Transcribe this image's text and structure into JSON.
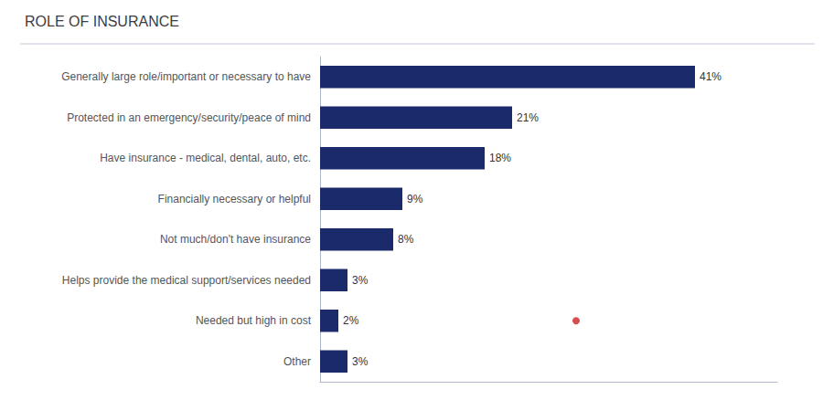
{
  "chart_data": {
    "type": "bar",
    "title": "ROLE OF INSURANCE",
    "orientation": "horizontal",
    "categories": [
      "Generally large role/important or necessary to have",
      "Protected in an emergency/security/peace of mind",
      "Have insurance - medical, dental, auto, etc.",
      "Financially necessary or helpful",
      "Not much/don't have insurance",
      "Helps provide the medical support/services needed",
      "Needed but high in cost",
      "Other"
    ],
    "values": [
      41,
      21,
      18,
      9,
      8,
      3,
      2,
      3
    ],
    "value_labels": [
      "41%",
      "21%",
      "18%",
      "9%",
      "8%",
      "3%",
      "2%",
      "3%"
    ],
    "data_labels": true,
    "color": "#1b2a6b",
    "xlim": [
      0,
      50
    ],
    "grid": false,
    "tick_labels": "y",
    "points": [
      {
        "category": "Needed but high in cost",
        "value": 28,
        "color": "#cc2222",
        "marker": "circle"
      }
    ]
  }
}
